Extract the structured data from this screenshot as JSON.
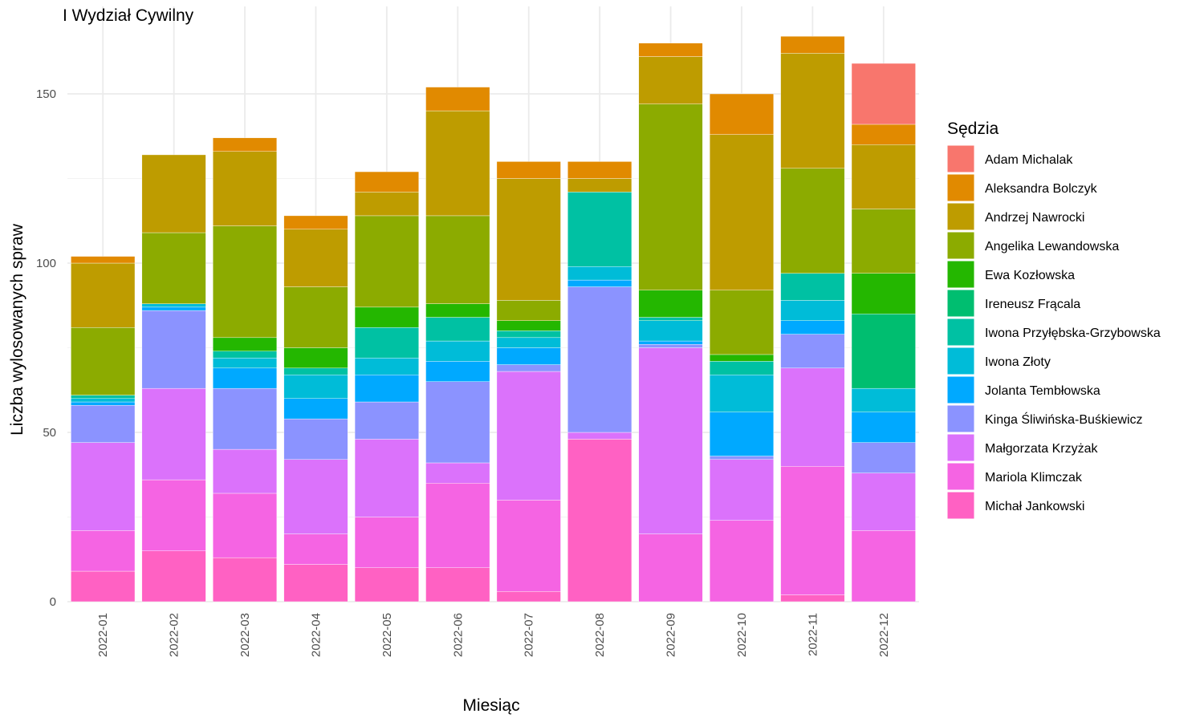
{
  "chart_data": {
    "type": "bar",
    "stacked": true,
    "title": "I Wydział Cywilny",
    "xlabel": "Miesiąc",
    "ylabel": "Liczba wylosowanych spraw",
    "ylim": [
      0,
      170
    ],
    "y_ticks": [
      0,
      50,
      100,
      150
    ],
    "legend_title": "Sędzia",
    "legend_position": "right",
    "grid": true,
    "categories": [
      "2022-01",
      "2022-02",
      "2022-03",
      "2022-04",
      "2022-05",
      "2022-06",
      "2022-07",
      "2022-08",
      "2022-09",
      "2022-10",
      "2022-11",
      "2022-12"
    ],
    "series": [
      {
        "name": "Michał Jankowski",
        "color": "#FF61C3",
        "values": [
          9,
          15,
          13,
          11,
          10,
          10,
          3,
          48,
          0,
          0,
          2,
          0
        ]
      },
      {
        "name": "Mariola Klimczak",
        "color": "#F564E3",
        "values": [
          12,
          21,
          19,
          9,
          15,
          25,
          27,
          0,
          20,
          24,
          38,
          21
        ]
      },
      {
        "name": "Małgorzata Krzyżak",
        "color": "#DB72FB",
        "values": [
          26,
          27,
          13,
          22,
          23,
          6,
          38,
          2,
          55,
          18,
          29,
          17
        ]
      },
      {
        "name": "Kinga Śliwińska-Buśkiewicz",
        "color": "#8B93FF",
        "values": [
          11,
          23,
          18,
          12,
          11,
          24,
          2,
          43,
          1,
          1,
          10,
          9
        ]
      },
      {
        "name": "Jolanta Tembłowska",
        "color": "#00A9FF",
        "values": [
          1,
          1,
          6,
          6,
          8,
          6,
          5,
          2,
          1,
          13,
          4,
          9
        ]
      },
      {
        "name": "Iwona Złoty",
        "color": "#00BCD8",
        "values": [
          1,
          1,
          3,
          7,
          5,
          6,
          3,
          4,
          6,
          11,
          6,
          7
        ]
      },
      {
        "name": "Iwona Przyłębska-Grzybowska",
        "color": "#00C1A3",
        "values": [
          1,
          0,
          2,
          2,
          9,
          7,
          2,
          22,
          1,
          4,
          8,
          0
        ]
      },
      {
        "name": "Ireneusz Frącala",
        "color": "#00BE70",
        "values": [
          0,
          0,
          0,
          0,
          0,
          0,
          0,
          0,
          0,
          0,
          0,
          22
        ]
      },
      {
        "name": "Ewa Kozłowska",
        "color": "#24B700",
        "values": [
          0,
          0,
          4,
          6,
          6,
          4,
          3,
          0,
          8,
          2,
          0,
          12
        ]
      },
      {
        "name": "Angelika Lewandowska",
        "color": "#8CAB00",
        "values": [
          20,
          21,
          33,
          18,
          27,
          26,
          6,
          0,
          55,
          19,
          31,
          19
        ]
      },
      {
        "name": "Andrzej Nawrocki",
        "color": "#BE9C00",
        "values": [
          19,
          23,
          22,
          17,
          7,
          31,
          36,
          4,
          14,
          46,
          34,
          19
        ]
      },
      {
        "name": "Aleksandra Bolczyk",
        "color": "#E18A00",
        "values": [
          2,
          0,
          4,
          4,
          6,
          7,
          5,
          5,
          4,
          12,
          5,
          6
        ]
      },
      {
        "name": "Adam Michalak",
        "color": "#F8766D",
        "values": [
          0,
          0,
          0,
          0,
          0,
          0,
          0,
          0,
          0,
          0,
          0,
          18
        ]
      }
    ],
    "legend_order": [
      "Adam Michalak",
      "Aleksandra Bolczyk",
      "Andrzej Nawrocki",
      "Angelika Lewandowska",
      "Ewa Kozłowska",
      "Ireneusz Frącala",
      "Iwona Przyłębska-Grzybowska",
      "Iwona Złoty",
      "Jolanta Tembłowska",
      "Kinga Śliwińska-Buśkiewicz",
      "Małgorzata Krzyżak",
      "Mariola Klimczak",
      "Michał Jankowski"
    ]
  }
}
